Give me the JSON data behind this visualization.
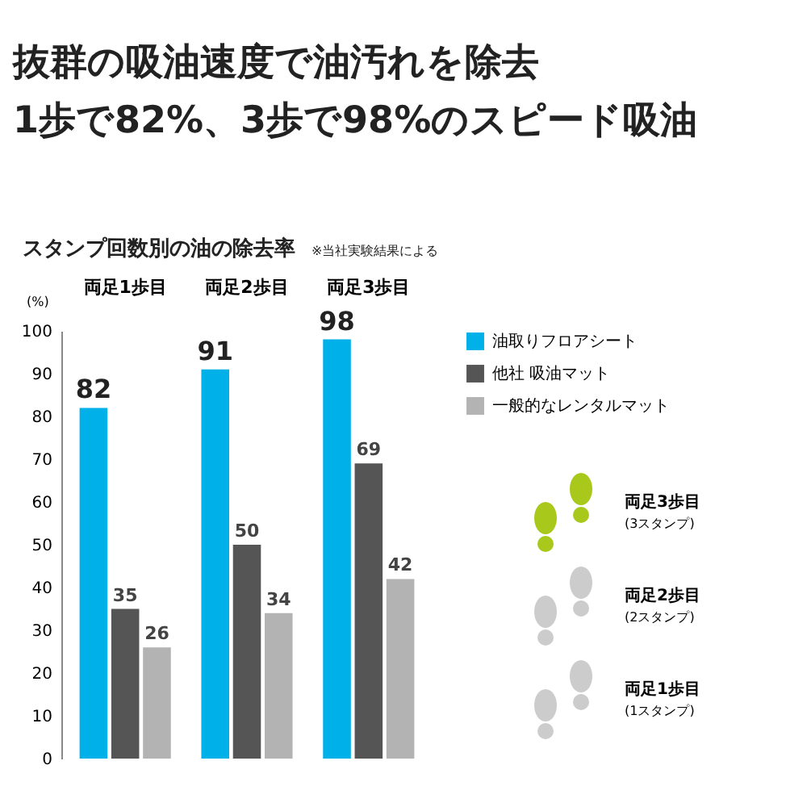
{
  "chart_data": {
    "type": "bar",
    "title": "抜群の吸油速度で油汚れを除去\n1歩で82%、3歩で98%のスピード吸油",
    "subtitle": "スタンプ回数別の油の除去率",
    "ylabel": "(%)",
    "annotations": [
      "※当社実験結果による",
      "両足3歩目",
      "(3スタンプ)",
      "両足2歩目",
      "(2スタンプ)",
      "両足1歩目",
      "(1スタンプ)"
    ],
    "categories": [
      "両足1歩目",
      "両足2歩目",
      "両足3歩目"
    ],
    "series": [
      {
        "name": "油取りフロアシート",
        "color": "#00b0e8",
        "values": [
          82,
          91,
          98
        ]
      },
      {
        "name": "他社 吸油マット",
        "color": "#555555",
        "values": [
          35,
          50,
          69
        ]
      },
      {
        "name": "一般的なレンタルマット",
        "color": "#b3b3b3",
        "values": [
          26,
          34,
          42
        ]
      }
    ],
    "ylim": [
      0,
      100
    ],
    "yticks": [
      0,
      10,
      20,
      30,
      40,
      50,
      60,
      70,
      80,
      90,
      100
    ],
    "grid": false,
    "legend": "top right",
    "data_labels": true
  }
}
